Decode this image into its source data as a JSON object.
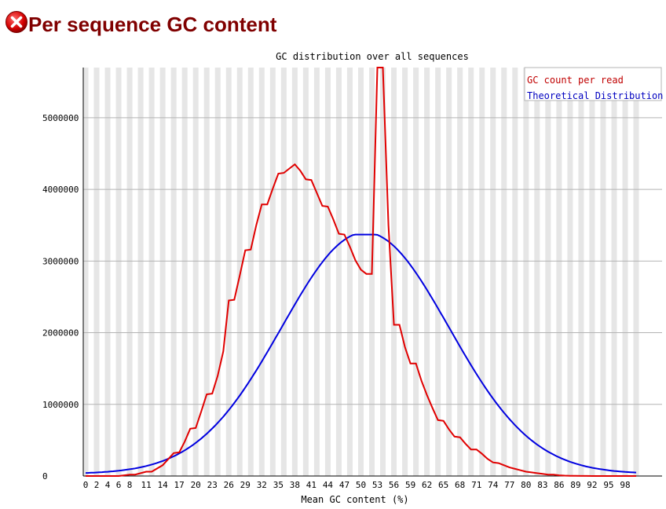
{
  "header": {
    "title": "Per sequence GC content",
    "status_icon": "fail-icon"
  },
  "colors": {
    "title": "#800000",
    "gc_count": "#e00000",
    "theoretical": "#0000e0",
    "stripe": "#e6e6e6",
    "grid": "#b4b4b4"
  },
  "chart_data": {
    "type": "line",
    "title": "GC distribution over all sequences",
    "xlabel": "Mean GC content (%)",
    "ylabel": "",
    "xlim": [
      0,
      102
    ],
    "ylim": [
      0,
      5700000
    ],
    "x_tick_labels": [
      "0",
      "2",
      "4",
      "6",
      "8",
      "11",
      "14",
      "17",
      "20",
      "23",
      "26",
      "29",
      "32",
      "35",
      "38",
      "41",
      "44",
      "47",
      "50",
      "53",
      "56",
      "59",
      "62",
      "65",
      "68",
      "71",
      "74",
      "77",
      "80",
      "83",
      "86",
      "89",
      "92",
      "95",
      "98"
    ],
    "y_ticks": [
      0,
      1000000,
      2000000,
      3000000,
      4000000,
      5000000
    ],
    "y_tick_labels": [
      "0",
      "1000000",
      "2000000",
      "3000000",
      "4000000",
      "5000000"
    ],
    "grid": true,
    "legend_position": "top-right",
    "series": [
      {
        "name": "GC count per read",
        "x": [
          0,
          2,
          4,
          6,
          8,
          9,
          10,
          11,
          12,
          14,
          16,
          17,
          18,
          19,
          20,
          21,
          22,
          23,
          24,
          25,
          26,
          27,
          28,
          29,
          30,
          31,
          32,
          33,
          34,
          35,
          36,
          37,
          38,
          39,
          40,
          41,
          42,
          43,
          44,
          45,
          46,
          47,
          48,
          49,
          50,
          51,
          52,
          53,
          54,
          55,
          56,
          57,
          58,
          59,
          60,
          61,
          62,
          63,
          64,
          65,
          66,
          67,
          68,
          69,
          70,
          71,
          72,
          73,
          74,
          75,
          76,
          77,
          78,
          79,
          80,
          81,
          82,
          83,
          84,
          85,
          86,
          87,
          88,
          89,
          90,
          91,
          92,
          93,
          94,
          95,
          96,
          97,
          98,
          99,
          100
        ],
        "y": [
          0,
          0,
          0,
          0,
          20000,
          20000,
          40000,
          60000,
          60000,
          150000,
          320000,
          330000,
          480000,
          660000,
          670000,
          900000,
          1140000,
          1150000,
          1400000,
          1740000,
          2450000,
          2460000,
          2800000,
          3150000,
          3160000,
          3500000,
          3790000,
          3790000,
          4010000,
          4220000,
          4230000,
          4290000,
          4350000,
          4260000,
          4140000,
          4130000,
          3950000,
          3770000,
          3760000,
          3580000,
          3380000,
          3370000,
          3200000,
          3010000,
          2880000,
          2820000,
          2820000,
          5700000,
          5700000,
          3500000,
          2110000,
          2110000,
          1800000,
          1570000,
          1570000,
          1330000,
          1130000,
          950000,
          780000,
          770000,
          650000,
          550000,
          540000,
          450000,
          370000,
          370000,
          310000,
          240000,
          190000,
          180000,
          150000,
          120000,
          100000,
          80000,
          60000,
          50000,
          40000,
          30000,
          20000,
          20000,
          10000,
          5000,
          3000,
          2000,
          1000,
          1000,
          500,
          0,
          0,
          0,
          0,
          0,
          0,
          0,
          0
        ]
      },
      {
        "name": "Theoretical Distribution",
        "mean": 50.8,
        "sd": 15.2,
        "peak": 3370000,
        "x_range": [
          0,
          100
        ]
      }
    ]
  }
}
